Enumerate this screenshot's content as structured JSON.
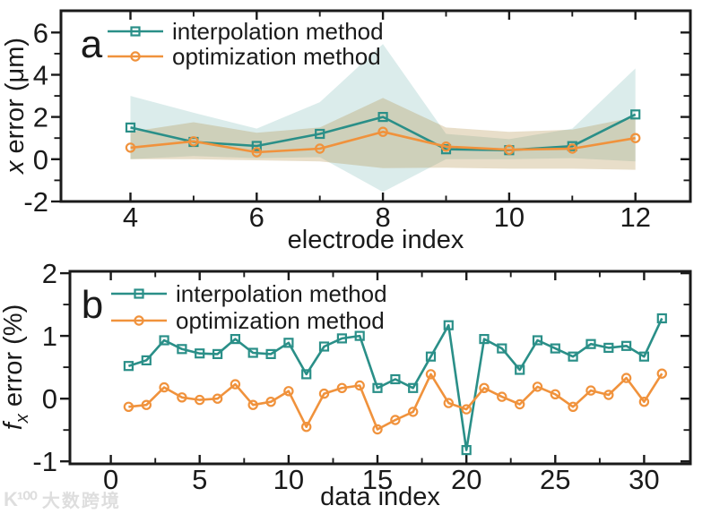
{
  "watermark": {
    "logo": "K¹⁰⁰",
    "text": "大数跨境"
  },
  "colors": {
    "axis": "#1a1a1a",
    "interpolation": "#2a8f88",
    "optimization": "#f0923c",
    "interpolation_band": "rgba(42,144,137,0.17)",
    "optimization_band": "rgba(172,138,62,0.28)"
  },
  "chart_data": [
    {
      "id": "panel-a",
      "type": "line",
      "panel_label": "a",
      "xlabel": "electrode index",
      "ylabel": "x error (μm)",
      "ylabel_parts": [
        {
          "t": "x",
          "italic": true
        },
        {
          "t": " error (μm)"
        }
      ],
      "legend_position": "top-left-inside",
      "grid": false,
      "xlim": [
        2.9,
        12.87
      ],
      "ylim": [
        -2,
        7.03
      ],
      "xticks": [
        4,
        6,
        8,
        10,
        12
      ],
      "xminor": [
        5,
        7,
        9,
        11
      ],
      "yticks": [
        -2,
        0,
        2,
        4,
        6
      ],
      "yminor": [
        -1,
        1,
        3,
        5
      ],
      "x": [
        4,
        5,
        6,
        7,
        8,
        9,
        10,
        11,
        12
      ],
      "series": [
        {
          "name": "interpolation method",
          "color_key": "interpolation",
          "marker": "square",
          "values": [
            1.5,
            0.82,
            0.63,
            1.2,
            2.0,
            0.47,
            0.43,
            0.62,
            2.12
          ],
          "band_high": [
            3.0,
            2.2,
            1.45,
            2.7,
            5.45,
            1.2,
            0.95,
            1.45,
            4.3
          ],
          "band_low": [
            0.0,
            0.15,
            0.05,
            0.1,
            -1.55,
            0.0,
            0.0,
            0.05,
            -0.1
          ]
        },
        {
          "name": "optimization method",
          "color_key": "optimization",
          "marker": "circle",
          "values": [
            0.55,
            0.85,
            0.33,
            0.5,
            1.3,
            0.6,
            0.45,
            0.5,
            1.0
          ],
          "band_high": [
            1.3,
            1.75,
            1.25,
            1.5,
            2.9,
            1.5,
            1.3,
            1.4,
            2.0
          ],
          "band_low": [
            0.0,
            0.0,
            -0.05,
            -0.1,
            -0.42,
            -0.4,
            -0.45,
            -0.45,
            -0.5
          ]
        }
      ]
    },
    {
      "id": "panel-b",
      "type": "line",
      "panel_label": "b",
      "xlabel": "data index",
      "ylabel": "fx error (%)",
      "ylabel_parts": [
        {
          "t": "f",
          "italic": true
        },
        {
          "t": "x",
          "italic": true,
          "sub": true
        },
        {
          "t": " error (%)"
        }
      ],
      "legend_position": "top-left-inside",
      "grid": false,
      "xlim": [
        -2.3,
        32.6
      ],
      "ylim": [
        -1.04,
        2.03
      ],
      "xticks": [
        0,
        5,
        10,
        15,
        20,
        25,
        30
      ],
      "xminor": [
        2.5,
        7.5,
        12.5,
        17.5,
        22.5,
        27.5
      ],
      "yticks": [
        -1,
        0,
        1,
        2
      ],
      "yminor": [
        -0.5,
        0.5,
        1.5
      ],
      "x": [
        1,
        2,
        3,
        4,
        5,
        6,
        7,
        8,
        9,
        10,
        11,
        12,
        13,
        14,
        15,
        16,
        17,
        18,
        19,
        20,
        21,
        22,
        23,
        24,
        25,
        26,
        27,
        28,
        29,
        30,
        31
      ],
      "series": [
        {
          "name": "interpolation method",
          "color_key": "interpolation",
          "marker": "square",
          "values": [
            0.52,
            0.61,
            0.93,
            0.79,
            0.72,
            0.71,
            0.95,
            0.73,
            0.71,
            0.89,
            0.39,
            0.83,
            0.96,
            1.0,
            0.17,
            0.31,
            0.17,
            0.67,
            1.17,
            -0.82,
            0.95,
            0.8,
            0.46,
            0.93,
            0.8,
            0.67,
            0.87,
            0.81,
            0.84,
            0.67,
            1.28
          ]
        },
        {
          "name": "optimization method",
          "color_key": "optimization",
          "marker": "circle",
          "values": [
            -0.13,
            -0.1,
            0.18,
            0.02,
            -0.02,
            0.0,
            0.23,
            -0.1,
            -0.05,
            0.12,
            -0.45,
            0.08,
            0.17,
            0.21,
            -0.49,
            -0.34,
            -0.21,
            0.39,
            -0.07,
            -0.17,
            0.17,
            0.03,
            -0.09,
            0.19,
            0.07,
            -0.13,
            0.13,
            0.06,
            0.33,
            -0.05,
            0.4
          ]
        }
      ]
    }
  ]
}
